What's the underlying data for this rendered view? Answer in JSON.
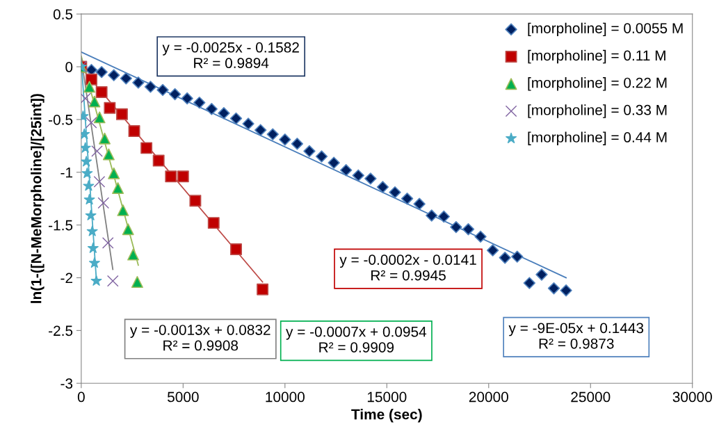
{
  "chart_data": {
    "type": "scatter",
    "xlabel": "Time (sec)",
    "ylabel": "ln(1-([N-MeMorpholine]/[25int])",
    "xlim": [
      0,
      30000
    ],
    "xticks": [
      0,
      5000,
      10000,
      15000,
      20000,
      25000,
      30000
    ],
    "ylim": [
      -3,
      0.5
    ],
    "yticks": [
      -3,
      -2.5,
      -2,
      -1.5,
      -1,
      -0.5,
      0,
      0.5
    ],
    "grid": false,
    "legend": "top right",
    "series": [
      {
        "name": "[morpholine] = 0.0055 M",
        "color": "#002060",
        "marker": "diamond",
        "x": [
          0,
          500,
          1000,
          1600,
          2200,
          2800,
          3400,
          4000,
          4600,
          5200,
          5800,
          6400,
          7000,
          7600,
          8200,
          8800,
          9400,
          10000,
          10600,
          11200,
          11800,
          12400,
          13000,
          13600,
          14200,
          14800,
          15400,
          16000,
          16600,
          17200,
          17800,
          18400,
          19000,
          19600,
          20200,
          20800,
          21400,
          22000,
          22600,
          23200,
          23800
        ],
        "values": [
          0,
          -0.03,
          -0.05,
          -0.08,
          -0.11,
          -0.15,
          -0.19,
          -0.22,
          -0.26,
          -0.3,
          -0.34,
          -0.4,
          -0.44,
          -0.49,
          -0.54,
          -0.6,
          -0.64,
          -0.69,
          -0.73,
          -0.8,
          -0.85,
          -0.91,
          -0.98,
          -1.03,
          -1.06,
          -1.14,
          -1.19,
          -1.25,
          -1.3,
          -1.41,
          -1.42,
          -1.52,
          -1.54,
          -1.61,
          -1.74,
          -1.81,
          -1.8,
          -2.05,
          -1.97,
          -2.1,
          -2.12
        ]
      },
      {
        "name": "[morpholine] = 0.11 M",
        "color": "#c00000",
        "marker": "square",
        "x": [
          0,
          500,
          1000,
          1400,
          2000,
          2600,
          3200,
          3800,
          4400,
          5000,
          5600,
          6500,
          7600,
          8900
        ],
        "values": [
          0,
          -0.12,
          -0.24,
          -0.39,
          -0.45,
          -0.61,
          -0.77,
          -0.89,
          -1.04,
          -1.04,
          -1.27,
          -1.48,
          -1.73,
          -2.11
        ]
      },
      {
        "name": "[morpholine] = 0.22 M",
        "color": "#00b050",
        "marker": "triangle",
        "x": [
          0,
          400,
          650,
          900,
          1150,
          1350,
          1600,
          1800,
          2050,
          2300,
          2550,
          2750
        ],
        "values": [
          0,
          -0.19,
          -0.33,
          -0.48,
          -0.68,
          -0.83,
          -1.01,
          -1.15,
          -1.36,
          -1.54,
          -1.78,
          -2.04
        ]
      },
      {
        "name": "[morpholine] = 0.33 M",
        "color": "#8064a2",
        "marker": "cross",
        "x": [
          0,
          200,
          490,
          775,
          890,
          1090,
          1310,
          1550
        ],
        "values": [
          0,
          -0.3,
          -0.53,
          -0.8,
          -1.09,
          -1.29,
          -1.67,
          -2.03
        ]
      },
      {
        "name": "[morpholine] = 0.44 M",
        "color": "#4bacc6",
        "marker": "star",
        "x": [
          0,
          90,
          150,
          200,
          250,
          290,
          360,
          400,
          470,
          540,
          580,
          650,
          740
        ],
        "values": [
          0,
          -0.47,
          -0.64,
          -0.77,
          -0.9,
          -1.01,
          -1.13,
          -1.26,
          -1.41,
          -1.56,
          -1.72,
          -1.86,
          -2.03
        ]
      },
      {
        "type": "line",
        "color": "#4a7ebb",
        "marker": "none",
        "x": [
          0,
          23800
        ],
        "values": [
          0.14,
          -2.0
        ]
      },
      {
        "type": "line",
        "color": "#be4b48",
        "marker": "none",
        "x": [
          0,
          8900
        ],
        "values": [
          -0.01,
          -2.04
        ]
      },
      {
        "type": "line",
        "color": "#9bbb59",
        "marker": "none",
        "x": [
          0,
          2800
        ],
        "values": [
          0.1,
          -1.88
        ]
      },
      {
        "type": "line",
        "color": "#808080",
        "marker": "none",
        "x": [
          0,
          1550
        ],
        "values": [
          0.08,
          -1.92
        ]
      },
      {
        "type": "line",
        "color": "#4bacc6",
        "marker": "none",
        "x": [
          0,
          740
        ],
        "values": [
          0.06,
          -2.01
        ]
      }
    ],
    "annotations": [
      "y = -0.0025x - 0.1582\nR² = 0.9894",
      "y = -0.0002x - 0.0141\nR² = 0.9945",
      "y = -0.0013x + 0.0832\nR² = 0.9908",
      "y = -0.0007x + 0.0954\nR² = 0.9909",
      "y = -9E-05x + 0.1443\nR² = 0.9873"
    ]
  }
}
